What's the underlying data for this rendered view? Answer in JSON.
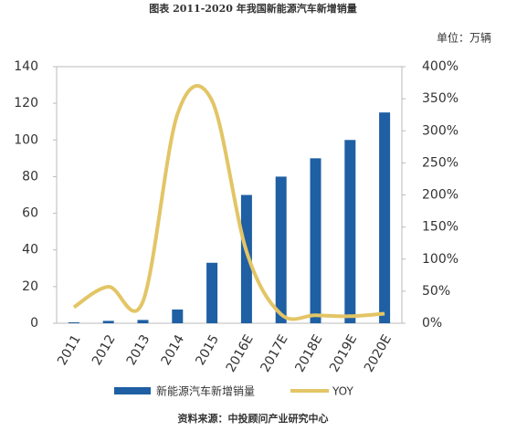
{
  "chart_data": {
    "type": "bar_line",
    "title": "图表   2011-2020 年我国新能源汽车新增销量",
    "unit_label": "单位：万辆",
    "source": "资料来源：中投顾问产业研究中心",
    "categories": [
      "2011",
      "2012",
      "2013",
      "2014",
      "2015",
      "2016E",
      "2017E",
      "2018E",
      "2019E",
      "2020E"
    ],
    "series": [
      {
        "name": "新能源汽车新增销量",
        "type": "bar",
        "color": "#1f5fa3",
        "values": [
          0.5,
          1.3,
          1.8,
          7.5,
          33,
          70,
          80,
          90,
          100,
          115
        ]
      },
      {
        "name": "YOY",
        "type": "line",
        "axis": "y2",
        "color": "#e3c566",
        "values": [
          25,
          57,
          34,
          326,
          347,
          112,
          14,
          12.5,
          11,
          15
        ]
      }
    ],
    "ylim": [
      0,
      140
    ],
    "yticks": [
      0,
      20,
      40,
      60,
      80,
      100,
      120,
      140
    ],
    "y2lim": [
      0,
      400
    ],
    "y2ticks": [
      {
        "value": 0,
        "label": "0%"
      },
      {
        "value": 50,
        "label": "50%"
      },
      {
        "value": 100,
        "label": "100%"
      },
      {
        "value": 150,
        "label": "150%"
      },
      {
        "value": 200,
        "label": "200%"
      },
      {
        "value": 250,
        "label": "250%"
      },
      {
        "value": 300,
        "label": "300%"
      },
      {
        "value": 350,
        "label": "350%"
      },
      {
        "value": 400,
        "label": "400%"
      }
    ],
    "legend": "bottom"
  }
}
